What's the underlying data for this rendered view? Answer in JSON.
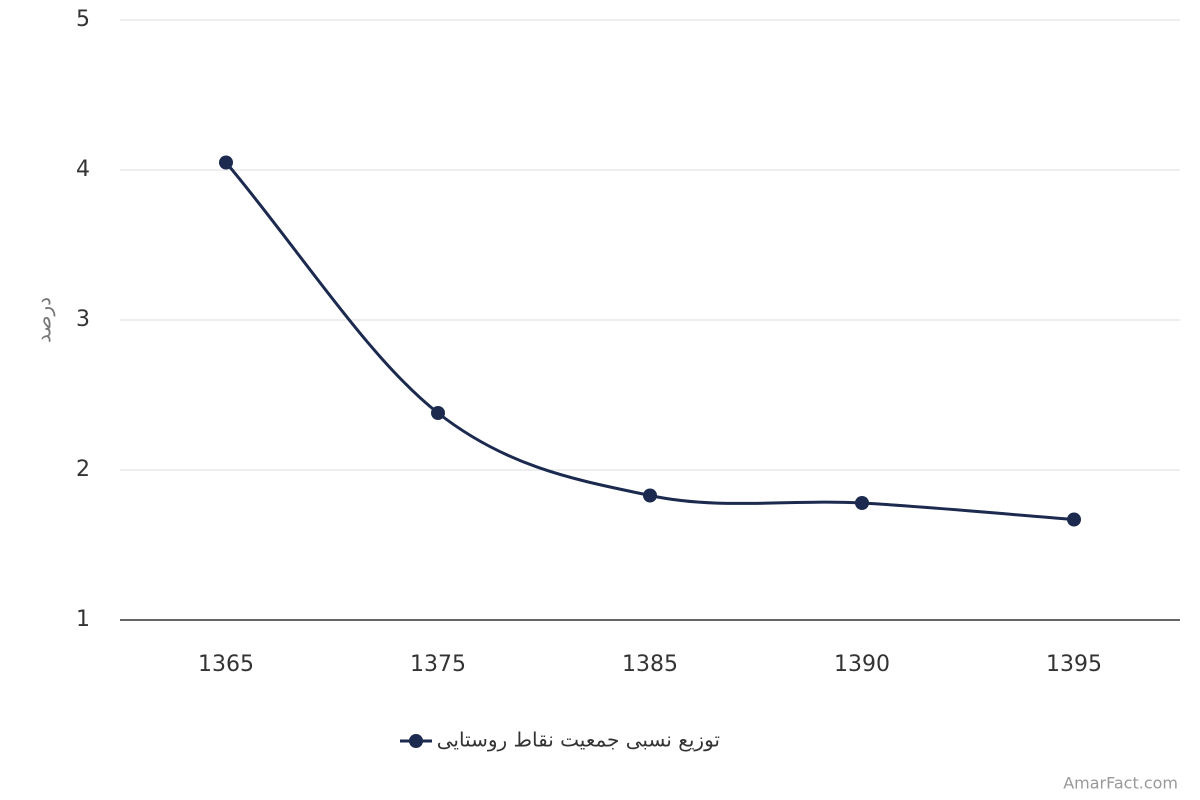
{
  "chart_data": {
    "type": "line",
    "y_label": "درصد",
    "categories": [
      "1365",
      "1375",
      "1385",
      "1390",
      "1395"
    ],
    "series": [
      {
        "name": "توزیع نسبی جمعیت نقاط روستایی",
        "color": "#1b2a4e",
        "values": [
          4.05,
          2.38,
          1.83,
          1.78,
          1.67
        ]
      }
    ],
    "ylim": [
      1,
      5
    ],
    "yticks": [
      1,
      2,
      3,
      4,
      5
    ],
    "grid": true,
    "legend": "bottom",
    "source": "AmarFact.com"
  }
}
